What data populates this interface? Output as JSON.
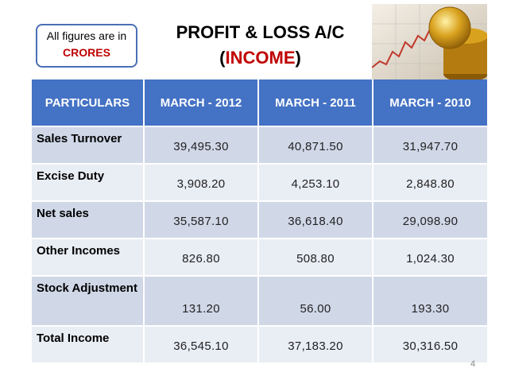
{
  "note": {
    "text": "All figures are in",
    "highlight": "CRORES"
  },
  "title": {
    "line1": "PROFIT & LOSS A/C",
    "open": "(",
    "highlight": "INCOME",
    "close": ")"
  },
  "table": {
    "header": [
      "PARTICULARS",
      "MARCH - 2012",
      "MARCH - 2011",
      "MARCH - 2010"
    ],
    "rows": [
      [
        "Sales Turnover",
        "39,495.30",
        "40,871.50",
        "31,947.70"
      ],
      [
        "Excise Duty",
        "3,908.20",
        "4,253.10",
        "2,848.80"
      ],
      [
        "Net sales",
        "35,587.10",
        "36,618.40",
        "29,098.90"
      ],
      [
        "Other Incomes",
        "826.80",
        "508.80",
        "1,024.30"
      ],
      [
        "Stock Adjustment",
        "131.20",
        "56.00",
        "193.30"
      ],
      [
        "Total Income",
        "36,545.10",
        "37,183.20",
        "30,316.50"
      ]
    ]
  },
  "page_number": "4"
}
